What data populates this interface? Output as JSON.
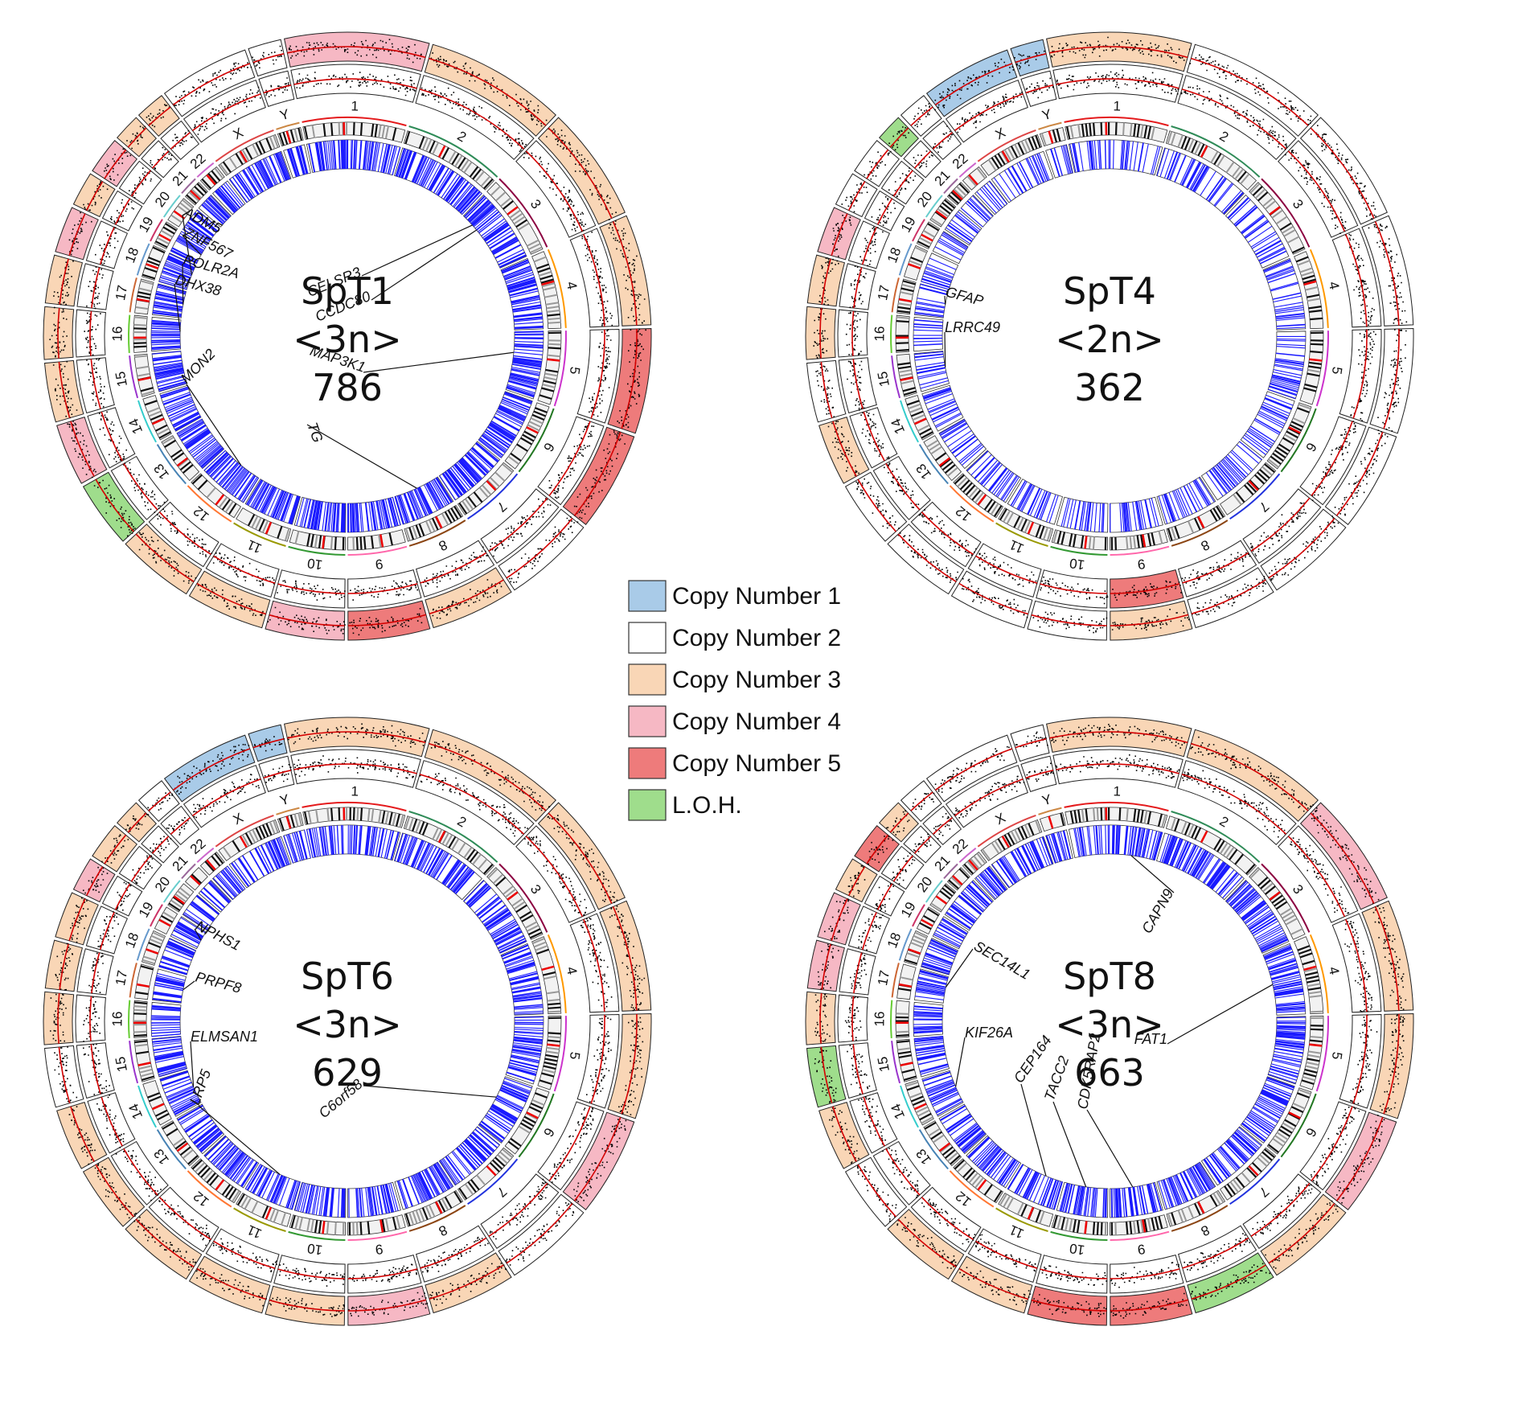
{
  "legend": {
    "items": [
      {
        "label": "Copy Number 1",
        "color": "#a9cbe8"
      },
      {
        "label": "Copy Number 2",
        "color": "#ffffff"
      },
      {
        "label": "Copy Number 3",
        "color": "#f9d6b6"
      },
      {
        "label": "Copy Number 4",
        "color": "#f6b8c4"
      },
      {
        "label": "Copy Number 5",
        "color": "#ee7b7b"
      },
      {
        "label": "L.O.H.",
        "color": "#9fdd8c"
      }
    ]
  },
  "chromosomes": [
    "1",
    "2",
    "3",
    "4",
    "5",
    "6",
    "7",
    "8",
    "9",
    "10",
    "11",
    "12",
    "13",
    "14",
    "15",
    "16",
    "17",
    "18",
    "19",
    "20",
    "21",
    "22",
    "X",
    "Y"
  ],
  "colors": {
    "mutation_lines": "#1a1aff",
    "scatter": "#000000",
    "cn_trace": "#d40000"
  },
  "panels": [
    {
      "sample": "SpT1",
      "ploidy": "<3n>",
      "count": "786",
      "genes": [
        {
          "label": "ADM5",
          "chrom": "18"
        },
        {
          "label": "ZNF567",
          "chrom": "19"
        },
        {
          "label": "POLR2A",
          "chrom": "17"
        },
        {
          "label": "DHX38",
          "chrom": "16"
        },
        {
          "label": "CELSR3",
          "chrom": "3"
        },
        {
          "label": "CCDC80",
          "chrom": "3"
        },
        {
          "label": "MAP3K1",
          "chrom": "5"
        },
        {
          "label": "MON2",
          "chrom": "12"
        },
        {
          "label": "TG",
          "chrom": "8"
        }
      ]
    },
    {
      "sample": "SpT4",
      "ploidy": "<2n>",
      "count": "362",
      "genes": [
        {
          "label": "GFAP",
          "chrom": "17"
        },
        {
          "label": "LRRC49",
          "chrom": "15"
        }
      ]
    },
    {
      "sample": "SpT6",
      "ploidy": "<3n>",
      "count": "629",
      "genes": [
        {
          "label": "NPHS1",
          "chrom": "19"
        },
        {
          "label": "PRPF8",
          "chrom": "17"
        },
        {
          "label": "ELMSAN1",
          "chrom": "14"
        },
        {
          "label": "LRP5",
          "chrom": "11"
        },
        {
          "label": "C6orf58",
          "chrom": "6"
        }
      ]
    },
    {
      "sample": "SpT8",
      "ploidy": "<3n>",
      "count": "663",
      "genes": [
        {
          "label": "CAPN9",
          "chrom": "1"
        },
        {
          "label": "SEC14L1",
          "chrom": "17"
        },
        {
          "label": "KIF26A",
          "chrom": "14"
        },
        {
          "label": "FAT1",
          "chrom": "4"
        },
        {
          "label": "CEP164",
          "chrom": "11"
        },
        {
          "label": "TACC2",
          "chrom": "10"
        },
        {
          "label": "CDK5RAP2",
          "chrom": "9"
        }
      ]
    }
  ]
}
